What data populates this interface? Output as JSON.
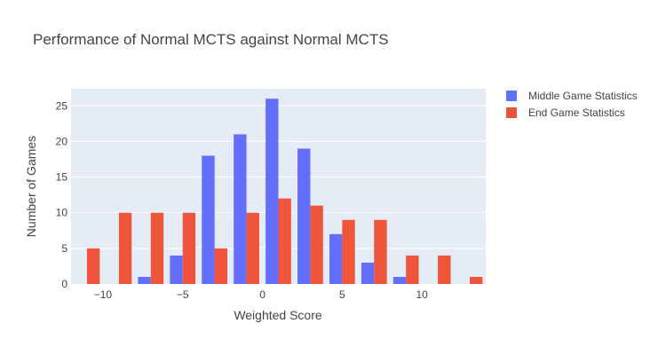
{
  "chart_data": {
    "type": "bar",
    "title": "Performance of Normal MCTS against Normal MCTS",
    "xlabel": "Weighted Score",
    "ylabel": "Number of Games",
    "x": [
      -11,
      -9,
      -7,
      -5,
      -3,
      -1,
      1,
      3,
      5,
      7,
      9,
      11,
      13
    ],
    "xlim": [
      -12,
      14
    ],
    "ylim": [
      0,
      27.4
    ],
    "xticks": [
      -10,
      -5,
      0,
      5,
      10
    ],
    "xtick_labels": [
      "−10",
      "−5",
      "0",
      "5",
      "10"
    ],
    "yticks": [
      0,
      5,
      10,
      15,
      20,
      25
    ],
    "ytick_labels": [
      "0",
      "5",
      "10",
      "15",
      "20",
      "25"
    ],
    "grid": true,
    "legend_position": "top-right-outside",
    "series": [
      {
        "name": "Middle Game Statistics",
        "color": "#636efa",
        "values": [
          0,
          0,
          1,
          4,
          18,
          21,
          26,
          19,
          7,
          3,
          1,
          0,
          0
        ]
      },
      {
        "name": "End Game Statistics",
        "color": "#ef553b",
        "values": [
          5,
          10,
          10,
          10,
          5,
          10,
          12,
          11,
          9,
          9,
          4,
          4,
          1
        ]
      }
    ],
    "plot_background": "#e5ecf6",
    "grid_color": "#ffffff"
  }
}
